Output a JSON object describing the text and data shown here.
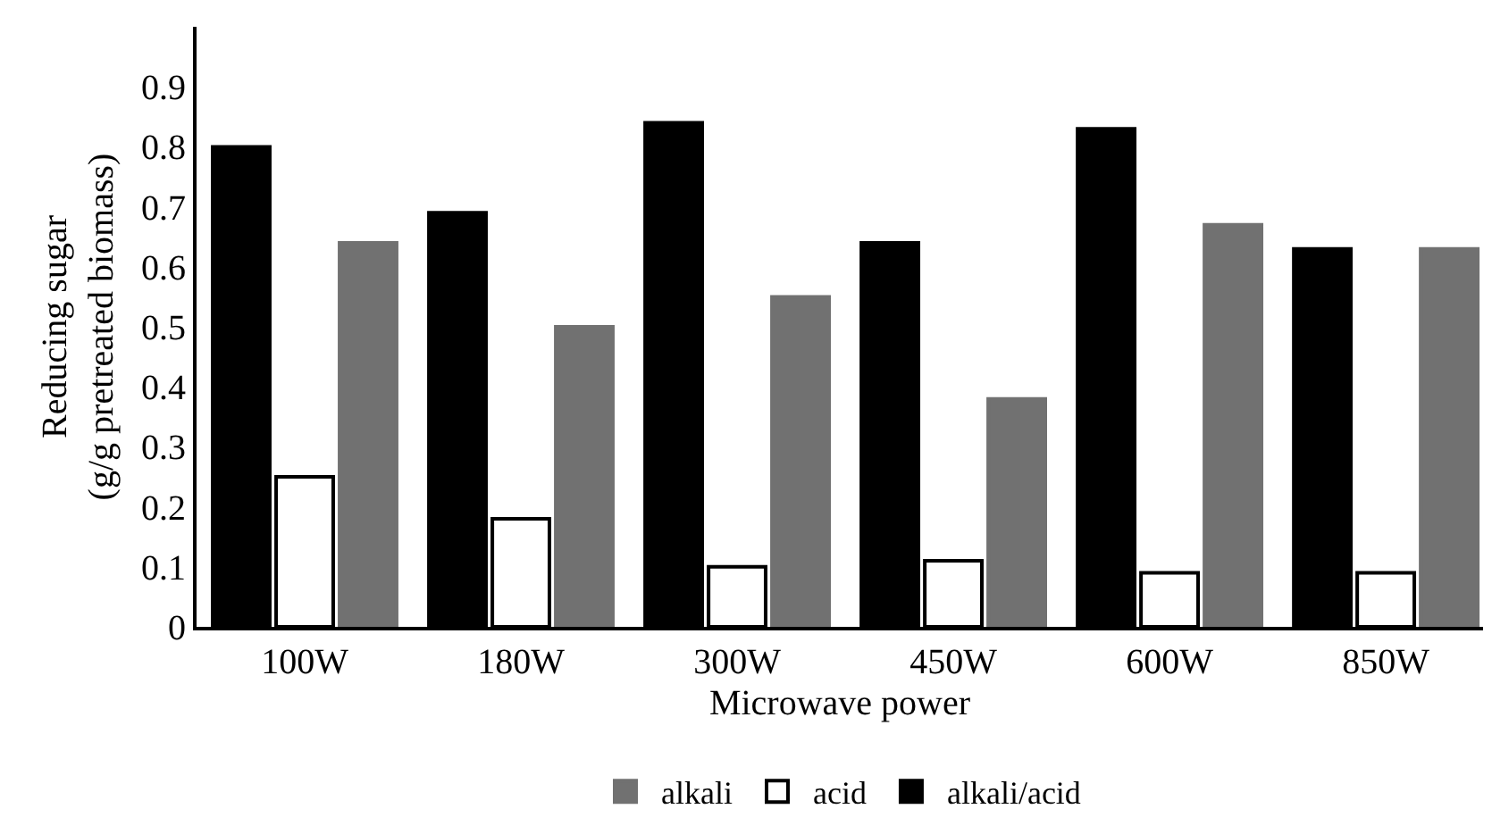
{
  "chart_data": {
    "type": "bar",
    "xlabel": "Microwave power",
    "ylabel": "Reducing sugar\n(g/g pretreated biomass)",
    "categories": [
      "100W",
      "180W",
      "300W",
      "450W",
      "600W",
      "850W"
    ],
    "series": [
      {
        "name": "alkali/acid",
        "color": "#000000",
        "values": [
          0.8,
          0.69,
          0.84,
          0.64,
          0.83,
          0.63
        ]
      },
      {
        "name": "acid",
        "color": "#ffffff",
        "values": [
          0.25,
          0.18,
          0.1,
          0.11,
          0.09,
          0.09
        ]
      },
      {
        "name": "alkali",
        "color": "#717171",
        "values": [
          0.64,
          0.5,
          0.55,
          0.38,
          0.67,
          0.63
        ]
      }
    ],
    "ylim": [
      0,
      1.0
    ],
    "yticks": [
      0,
      0.1,
      0.2,
      0.3,
      0.4,
      0.5,
      0.6,
      0.7,
      0.8,
      0.9
    ],
    "legend": "bottom"
  }
}
